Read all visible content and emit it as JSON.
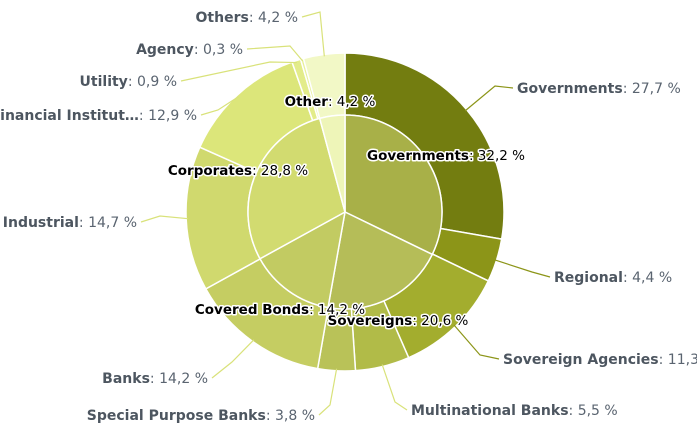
{
  "chart_data": {
    "type": "pie",
    "variant": "sunburst",
    "inner": [
      {
        "name": "Governments",
        "value": 32.2,
        "label": "32,2 %",
        "color": "#a8b048"
      },
      {
        "name": "Sovereigns",
        "value": 20.6,
        "label": "20,6 %",
        "color": "#b5bd58"
      },
      {
        "name": "Covered Bonds",
        "value": 14.2,
        "label": "14,2 %",
        "color": "#c2cb62"
      },
      {
        "name": "Corporates",
        "value": 28.8,
        "label": "28,8 %",
        "color": "#d2db70"
      },
      {
        "name": "Other",
        "value": 4.2,
        "label": "4,2 %",
        "color": "#eef5b8"
      }
    ],
    "outer": [
      {
        "name": "Governments",
        "value": 27.7,
        "label": "27,7 %",
        "color": "#737d10"
      },
      {
        "name": "Regional",
        "value": 4.4,
        "label": "4,4 %",
        "color": "#8c9518"
      },
      {
        "name": "Sovereign Agencies",
        "value": 11.3,
        "label": "11,3",
        "color": "#a3ad2e"
      },
      {
        "name": "Multinational Banks",
        "value": 5.5,
        "label": "5,5 %",
        "color": "#b1bb48"
      },
      {
        "name": "Special Purpose Banks",
        "value": 3.8,
        "label": "3,8 %",
        "color": "#b9c258"
      },
      {
        "name": "Banks",
        "value": 14.2,
        "label": "14,2 %",
        "color": "#c5cd62"
      },
      {
        "name": "Industrial",
        "value": 14.7,
        "label": "14,7 %",
        "color": "#d0d96e"
      },
      {
        "name": "Financial Institut…",
        "value": 12.9,
        "label": "12,9 %",
        "color": "#dce67a"
      },
      {
        "name": "Utility",
        "value": 0.9,
        "label": "0,9 %",
        "color": "#e3ec8a"
      },
      {
        "name": "Agency",
        "value": 0.3,
        "label": "0,3 %",
        "color": "#e8f09a"
      },
      {
        "name": "Others",
        "value": 4.2,
        "label": "4,2 %",
        "color": "#f2f8c6"
      }
    ]
  }
}
